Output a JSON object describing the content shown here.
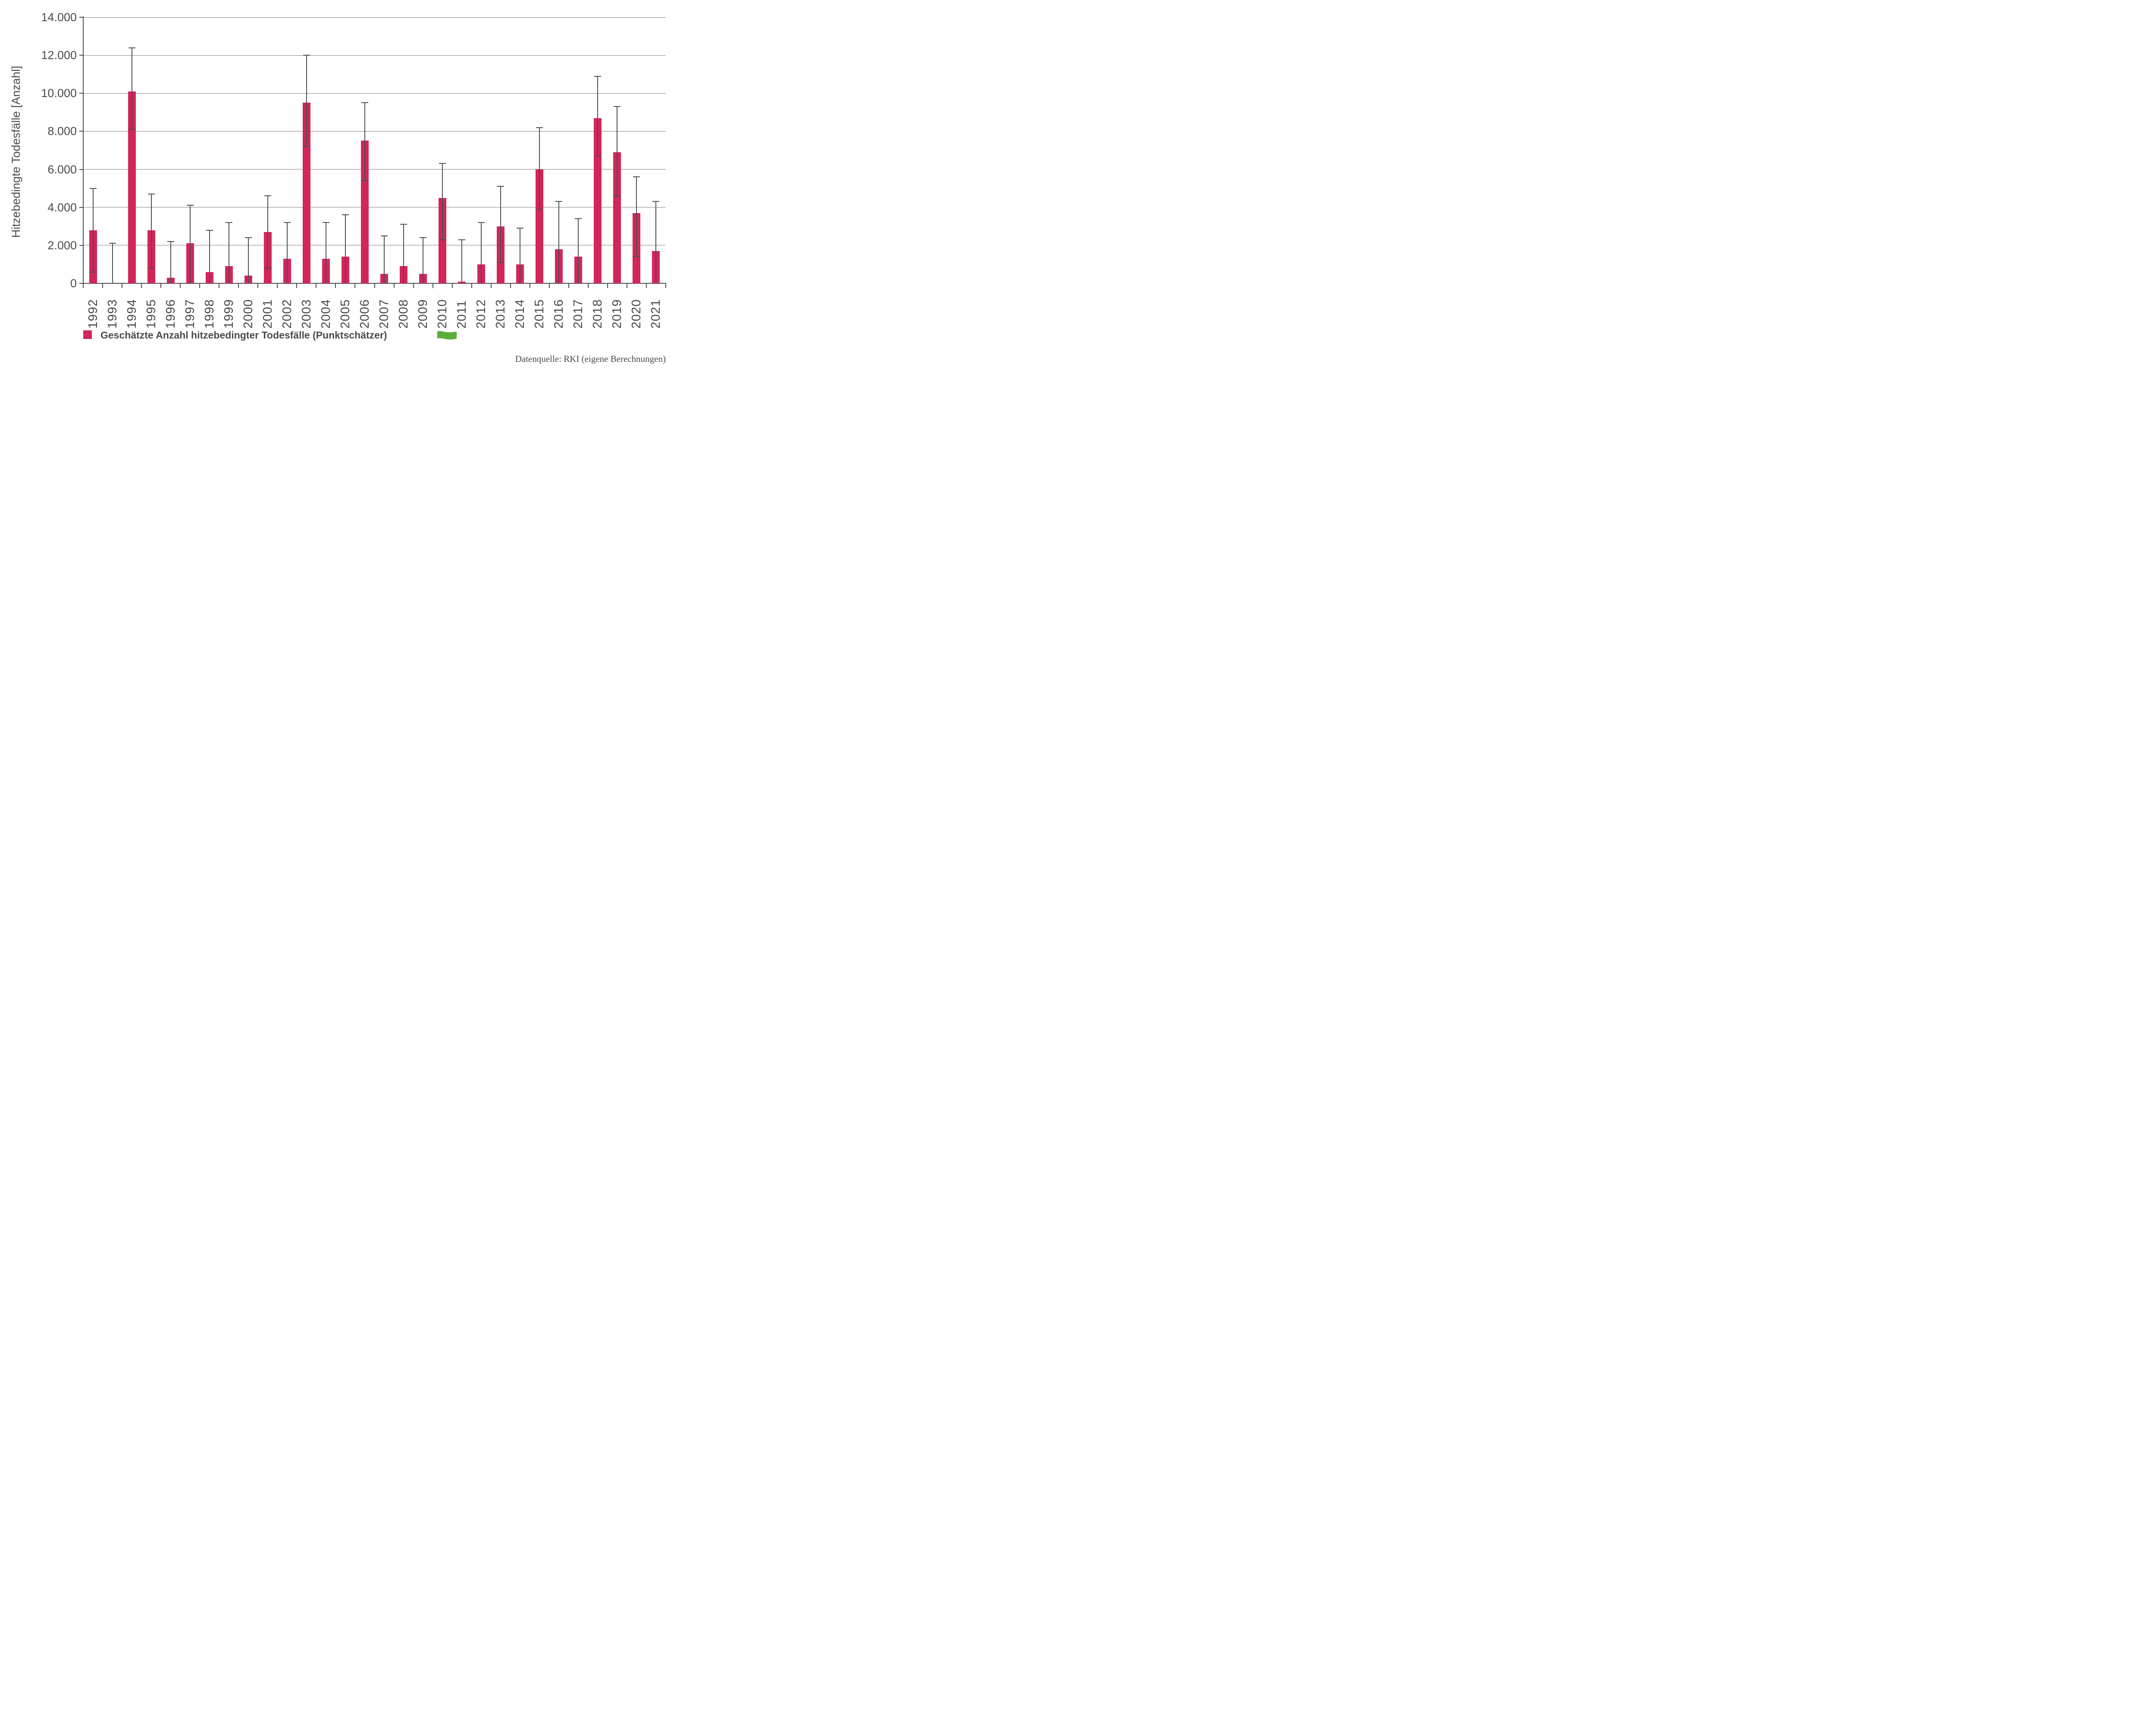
{
  "chart_data": {
    "type": "bar",
    "title": "",
    "xlabel": "",
    "ylabel": "Hitzebedingte Todesfälle [Anzahl]",
    "ylim": [
      0,
      14000
    ],
    "ytick_step": 2000,
    "ytick_labels": [
      "0",
      "2.000",
      "4.000",
      "6.000",
      "8.000",
      "10.000",
      "12.000",
      "14.000"
    ],
    "grid": true,
    "legend_position": "bottom",
    "categories": [
      "1992",
      "1993",
      "1994",
      "1995",
      "1996",
      "1997",
      "1998",
      "1999",
      "2000",
      "2001",
      "2002",
      "2003",
      "2004",
      "2005",
      "2006",
      "2007",
      "2008",
      "2009",
      "2010",
      "2011",
      "2012",
      "2013",
      "2014",
      "2015",
      "2016",
      "2017",
      "2018",
      "2019",
      "2020",
      "2021"
    ],
    "series": [
      {
        "name": "Geschätzte Anzahl hitzebedingter Todesfälle (Punktschätzer)",
        "color": "#d2265b",
        "values": [
          2800,
          0,
          10100,
          2800,
          300,
          2100,
          600,
          900,
          400,
          2700,
          1300,
          9500,
          1300,
          1400,
          7500,
          500,
          900,
          500,
          4500,
          100,
          1000,
          3000,
          1000,
          6000,
          1800,
          1400,
          8700,
          6900,
          3700,
          1700
        ],
        "ci_low": [
          600,
          0,
          8100,
          800,
          0,
          0,
          0,
          0,
          0,
          800,
          0,
          7200,
          0,
          0,
          5400,
          0,
          0,
          0,
          2300,
          0,
          0,
          1100,
          0,
          3900,
          0,
          0,
          6700,
          4600,
          1400,
          0
        ],
        "ci_high": [
          5000,
          2100,
          12400,
          4700,
          2200,
          4100,
          2800,
          3200,
          2400,
          4600,
          3200,
          12000,
          3200,
          3600,
          9500,
          2500,
          3100,
          2400,
          6300,
          2300,
          3200,
          5100,
          2900,
          8200,
          4300,
          3400,
          10900,
          9300,
          5600,
          4300
        ]
      }
    ]
  },
  "legend": {
    "label": "Geschätzte Anzahl hitzebedingter Todesfälle (Punktschätzer)",
    "marker_color": "#d2265b",
    "flag_icon": "green-wavy-flag-icon",
    "flag_color": "#5cad3c"
  },
  "source": {
    "text": "Datenquelle: RKI (eigene Berechnungen)"
  },
  "colors": {
    "bar": "#d2265b",
    "axis": "#4d4d4d",
    "gridline": "#7f7f7f",
    "text": "#4a4a4a",
    "error_bar": "#4d4d4d"
  }
}
